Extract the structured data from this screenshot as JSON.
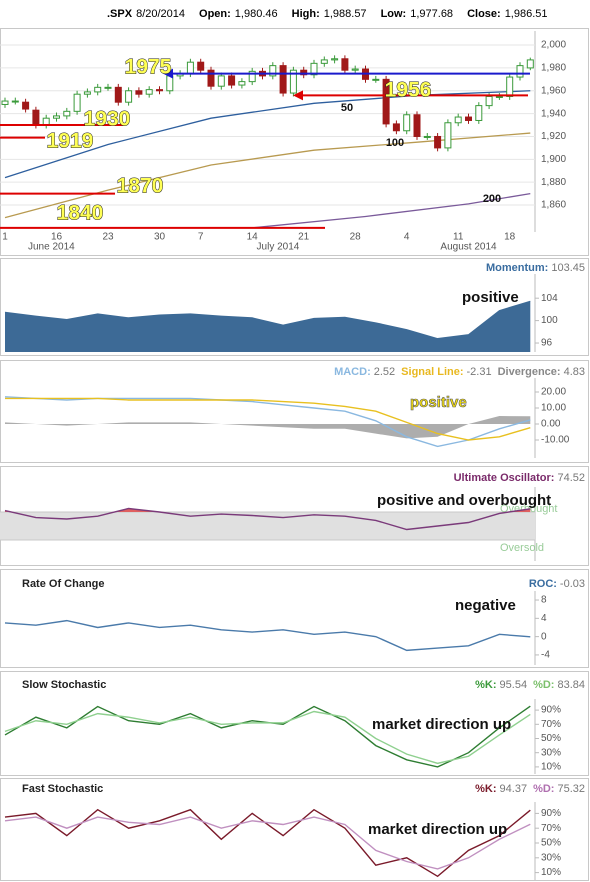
{
  "header": {
    "symbol": ".SPX",
    "date": "8/20/2014",
    "fields": [
      {
        "label": "Open:",
        "value": "1,980.46"
      },
      {
        "label": "High:",
        "value": "1,988.57"
      },
      {
        "label": "Low:",
        "value": "1,977.68"
      },
      {
        "label": "Close:",
        "value": "1,986.51"
      }
    ]
  },
  "chart_data": [
    {
      "type": "candlestick",
      "categories": [
        "1",
        null,
        null,
        null,
        null,
        "16",
        null,
        null,
        null,
        null,
        "23",
        null,
        null,
        null,
        null,
        "30",
        null,
        null,
        null,
        "7",
        null,
        null,
        null,
        null,
        "14",
        null,
        null,
        null,
        null,
        "21",
        null,
        null,
        null,
        null,
        "28",
        null,
        null,
        null,
        null,
        "4",
        null,
        null,
        null,
        null,
        "11",
        null,
        null,
        null,
        null,
        "18",
        null,
        null
      ],
      "months": [
        "June 2014",
        "July 2014",
        "August 2014"
      ],
      "open": [
        1948,
        1951,
        1950,
        1943,
        1930,
        1936,
        1938,
        1942,
        1957,
        1959,
        1963,
        1963,
        1950,
        1960,
        1957,
        1961,
        1960,
        1973,
        1975,
        1985,
        1978,
        1964,
        1973,
        1965,
        1968,
        1977,
        1973,
        1982,
        1958,
        1978,
        1974,
        1984,
        1987,
        1988,
        1978,
        1979,
        1970,
        1970,
        1931,
        1925,
        1939,
        1920,
        1920,
        1910,
        1932,
        1937,
        1934,
        1947,
        1955,
        1955,
        1972,
        1980
      ],
      "high": [
        1954,
        1954,
        1953,
        1946,
        1939,
        1941,
        1945,
        1960,
        1962,
        1966,
        1966,
        1966,
        1963,
        1963,
        1964,
        1964,
        1976,
        1978,
        1988,
        1988,
        1981,
        1976,
        1976,
        1971,
        1980,
        1980,
        1985,
        1985,
        1981,
        1981,
        1987,
        1990,
        1991,
        1991,
        1982,
        1982,
        1973,
        1973,
        1934,
        1942,
        1942,
        1923,
        1923,
        1935,
        1940,
        1940,
        1950,
        1958,
        1958,
        1975,
        1985,
        1989
      ],
      "low": [
        1945,
        1948,
        1941,
        1927,
        1927,
        1933,
        1935,
        1939,
        1954,
        1956,
        1960,
        1947,
        1947,
        1954,
        1954,
        1957,
        1957,
        1970,
        1972,
        1975,
        1961,
        1961,
        1962,
        1962,
        1965,
        1970,
        1970,
        1955,
        1955,
        1971,
        1971,
        1981,
        1984,
        1975,
        1975,
        1967,
        1967,
        1928,
        1922,
        1922,
        1917,
        1917,
        1907,
        1907,
        1929,
        1931,
        1931,
        1944,
        1952,
        1952,
        1969,
        1978
      ],
      "close": [
        1951,
        1951,
        1944,
        1930,
        1936,
        1938,
        1942,
        1957,
        1959,
        1963,
        1963,
        1950,
        1960,
        1957,
        1961,
        1960,
        1973,
        1975,
        1985,
        1978,
        1964,
        1973,
        1965,
        1968,
        1977,
        1973,
        1982,
        1958,
        1978,
        1974,
        1984,
        1987,
        1988,
        1978,
        1979,
        1970,
        1970,
        1931,
        1925,
        1939,
        1920,
        1920,
        1910,
        1932,
        1937,
        1934,
        1947,
        1955,
        1955,
        1972,
        1982,
        1987
      ],
      "up_color": "#3a9a3a",
      "down_color": "#a01818",
      "series": [
        {
          "name": "50",
          "color": "#2e5f9e",
          "x": [
            0,
            10,
            20,
            30,
            40,
            51
          ],
          "values": [
            1884,
            1913,
            1936,
            1949,
            1956,
            1960
          ]
        },
        {
          "name": "100",
          "color": "#b89a50",
          "x": [
            0,
            10,
            20,
            30,
            40,
            51
          ],
          "values": [
            1849,
            1873,
            1895,
            1908,
            1915,
            1923
          ]
        },
        {
          "name": "200",
          "color": "#7a5a9a",
          "x": [
            24,
            35,
            45,
            51
          ],
          "values": [
            1840,
            1850,
            1861,
            1870
          ]
        }
      ],
      "levels": [
        {
          "value": 1975,
          "color": "#1a1acc"
        },
        {
          "value": 1956,
          "color": "#dd0000"
        },
        {
          "value": 1930,
          "color": "#dd0000"
        },
        {
          "value": 1919,
          "color": "#dd0000"
        },
        {
          "value": 1870,
          "color": "#dd0000"
        },
        {
          "value": 1840,
          "color": "#dd0000"
        }
      ],
      "ylim": [
        1836.4,
        2008.8
      ],
      "yticks": [
        {
          "value": 2000,
          "label": "2,000"
        },
        {
          "value": 1980,
          "label": "1,980"
        },
        {
          "value": 1960,
          "label": "1,960"
        },
        {
          "value": 1940,
          "label": "1,940"
        },
        {
          "value": 1920,
          "label": "1,920"
        },
        {
          "value": 1900,
          "label": "1,900"
        },
        {
          "value": 1880,
          "label": "1,880"
        },
        {
          "value": 1860,
          "label": "1,860"
        }
      ],
      "grid": true
    },
    {
      "type": "area",
      "readouts": [
        {
          "label": "Momentum:",
          "value": 103.45,
          "color": "#3a6da0"
        }
      ],
      "x": [
        0,
        3,
        6,
        9,
        12,
        15,
        18,
        21,
        24,
        27,
        30,
        33,
        36,
        39,
        42,
        45,
        48,
        51
      ],
      "series": [
        {
          "color": "#3d6a96",
          "values": [
            101.5,
            100.8,
            100.2,
            101.2,
            100.5,
            101,
            101.2,
            100.8,
            100.5,
            99.2,
            100.4,
            100.6,
            99.6,
            98.4,
            96.8,
            97.5,
            101.8,
            103.45
          ]
        }
      ],
      "ylim": [
        94.4,
        107.6
      ],
      "yticks": [
        104,
        100,
        96
      ],
      "annotations": [
        "positive"
      ],
      "annotation_color": "#111111"
    },
    {
      "type": "line",
      "readouts": [
        {
          "label": "MACD:",
          "value": 2.52,
          "color": "#8ab8e0"
        },
        {
          "label": "Signal Line:",
          "value": -2.31,
          "color": "#e8b820"
        },
        {
          "label": "Divergence:",
          "value": 4.83,
          "color": "#888888"
        }
      ],
      "x": [
        0,
        3,
        6,
        9,
        12,
        15,
        18,
        21,
        24,
        27,
        30,
        33,
        36,
        39,
        42,
        45,
        48,
        51
      ],
      "series": [
        {
          "style": "area",
          "color": "#999999",
          "values": [
            1,
            0,
            -1,
            0,
            1,
            1,
            1,
            0,
            -1,
            -2,
            -3,
            -3,
            -6,
            -9,
            -8,
            0,
            5,
            4.83
          ]
        },
        {
          "color": "#8ab8e0",
          "values": [
            17,
            16,
            15,
            16,
            16,
            16,
            16,
            15,
            14,
            12,
            10,
            8,
            2,
            -8,
            -14,
            -10,
            -3,
            2.52
          ]
        },
        {
          "color": "#e8c020",
          "values": [
            16,
            16,
            16,
            16,
            15,
            15,
            15,
            15,
            15,
            14,
            13,
            11,
            8,
            1,
            -6,
            -10,
            -8,
            -2.31
          ]
        }
      ],
      "ylim": [
        -21.25,
        26.25
      ],
      "yticks": [
        {
          "value": 20,
          "label": "20.00"
        },
        {
          "value": 10,
          "label": "10.00"
        },
        {
          "value": 0,
          "label": "0.00"
        },
        {
          "value": -10,
          "label": "-10.00"
        }
      ],
      "annotations": [
        "positive"
      ],
      "annotation_color": "#f5e010"
    },
    {
      "type": "line",
      "readouts": [
        {
          "label": "Ultimate Oscillator:",
          "value": 74.52,
          "color": "#7a2a6a"
        }
      ],
      "x": [
        0,
        3,
        6,
        9,
        12,
        15,
        18,
        21,
        24,
        27,
        30,
        33,
        36,
        39,
        42,
        45,
        48,
        51
      ],
      "series": [
        {
          "color": "#7a3a7a",
          "values": [
            72,
            62,
            60,
            64,
            75,
            70,
            64,
            67,
            65,
            62,
            66,
            64,
            58,
            45,
            50,
            55,
            68,
            74.52
          ]
        }
      ],
      "bands": [
        {
          "value": 70,
          "label": "Overbought"
        },
        {
          "value": 30,
          "label": "Oversold"
        }
      ],
      "overbought_color": "#e06060",
      "ylim": [
        0,
        100
      ],
      "yticks": [],
      "annotations": [
        "positive and overbought"
      ],
      "annotation_color": "#111111"
    },
    {
      "type": "line",
      "title": "Rate Of Change",
      "readouts": [
        {
          "label": "ROC:",
          "value": -0.03,
          "color": "#3a6da0"
        }
      ],
      "x": [
        0,
        3,
        6,
        9,
        12,
        15,
        18,
        21,
        24,
        27,
        30,
        33,
        36,
        39,
        42,
        45,
        48,
        51
      ],
      "series": [
        {
          "color": "#4a7aaa",
          "values": [
            3,
            2.5,
            3.5,
            2,
            3,
            2,
            2.5,
            1.5,
            1,
            1.5,
            0.5,
            1,
            0,
            -3,
            -2.5,
            -2,
            0.5,
            -0.03
          ]
        }
      ],
      "ylim": [
        -6.2,
        9.1
      ],
      "yticks": [
        8,
        4,
        0,
        -4
      ],
      "annotations": [
        "negative"
      ],
      "annotation_color": "#111111"
    },
    {
      "type": "line",
      "title": "Slow Stochastic",
      "readouts": [
        {
          "label": "%K:",
          "value": 95.54,
          "color": "#3a9a3a"
        },
        {
          "label": "%D:",
          "value": 83.84,
          "color": "#7cc06c"
        }
      ],
      "x": [
        0,
        3,
        6,
        9,
        12,
        15,
        18,
        21,
        24,
        27,
        30,
        33,
        36,
        39,
        42,
        45,
        48,
        51
      ],
      "series": [
        {
          "color": "#2e7d32",
          "values": [
            55,
            80,
            65,
            95,
            75,
            70,
            85,
            65,
            75,
            70,
            95,
            75,
            40,
            20,
            10,
            30,
            65,
            95.54
          ]
        },
        {
          "color": "#8fd08f",
          "values": [
            60,
            75,
            70,
            85,
            80,
            72,
            80,
            70,
            72,
            72,
            88,
            80,
            50,
            28,
            15,
            25,
            55,
            83.84
          ]
        }
      ],
      "ylim": [
        0,
        100
      ],
      "yticks": [
        {
          "value": 90,
          "label": "90%"
        },
        {
          "value": 70,
          "label": "70%"
        },
        {
          "value": 50,
          "label": "50%"
        },
        {
          "value": 30,
          "label": "30%"
        },
        {
          "value": 10,
          "label": "10%"
        }
      ],
      "annotations": [
        "market direction up"
      ],
      "annotation_color": "#111111"
    },
    {
      "type": "line",
      "title": "Fast Stochastic",
      "readouts": [
        {
          "label": "%K:",
          "value": 94.37,
          "color": "#7a1a2a"
        },
        {
          "label": "%D:",
          "value": 75.32,
          "color": "#b070b0"
        }
      ],
      "x": [
        0,
        3,
        6,
        9,
        12,
        15,
        18,
        21,
        24,
        27,
        30,
        33,
        36,
        39,
        42,
        45,
        48,
        51
      ],
      "series": [
        {
          "color": "#7a1a2a",
          "values": [
            85,
            90,
            60,
            95,
            70,
            80,
            95,
            55,
            90,
            60,
            95,
            70,
            20,
            30,
            5,
            40,
            60,
            94.37
          ]
        },
        {
          "color": "#c090c0",
          "values": [
            80,
            85,
            70,
            85,
            78,
            75,
            85,
            70,
            80,
            75,
            85,
            75,
            40,
            25,
            15,
            30,
            55,
            75.32
          ]
        }
      ],
      "ylim": [
        0,
        100
      ],
      "yticks": [
        {
          "value": 90,
          "label": "90%"
        },
        {
          "value": 70,
          "label": "70%"
        },
        {
          "value": 50,
          "label": "50%"
        },
        {
          "value": 30,
          "label": "30%"
        },
        {
          "value": 10,
          "label": "10%"
        }
      ],
      "annotations": [
        "market direction up"
      ],
      "annotation_color": "#111111"
    }
  ]
}
